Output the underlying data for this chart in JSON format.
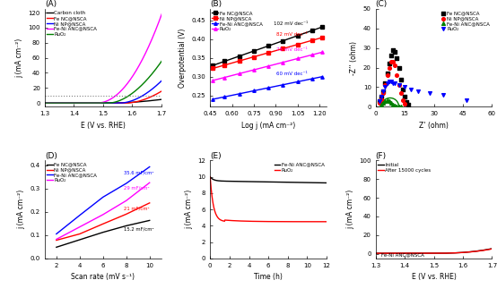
{
  "panel_A": {
    "title": "(A)",
    "xlabel": "E (V vs. RHE)",
    "ylabel": "j (mA cm⁻²)",
    "xlim": [
      1.3,
      1.7
    ],
    "ylim": [
      -5,
      125
    ],
    "yticks": [
      0,
      20,
      40,
      60,
      80,
      100,
      120
    ],
    "xticks": [
      1.3,
      1.4,
      1.5,
      1.6,
      1.7
    ],
    "dotted_y": 10
  },
  "panel_B": {
    "title": "(B)",
    "xlabel": "Log j (mA cm⁻²)",
    "ylabel": "Overpotential (V)",
    "xlim": [
      0.45,
      1.25
    ],
    "ylim": [
      0.22,
      0.48
    ],
    "yticks": [
      0.25,
      0.3,
      0.35,
      0.4,
      0.45
    ],
    "xticks": [
      0.45,
      0.6,
      0.75,
      0.9,
      1.05,
      1.2
    ]
  },
  "panel_C": {
    "title": "(C)",
    "xlabel": "Z’ (ohm)",
    "ylabel": "-Z’’ (ohm)",
    "xlim": [
      0,
      60
    ],
    "ylim": [
      0,
      50
    ],
    "yticks": [
      0,
      10,
      20,
      30,
      40,
      50
    ],
    "xticks": [
      0,
      15,
      30,
      45,
      60
    ]
  },
  "panel_D": {
    "title": "(D)",
    "xlabel": "Scan rate (mV s⁻¹)",
    "ylabel": "j (mA cm⁻²)",
    "xlim": [
      1,
      11
    ],
    "ylim": [
      0,
      0.42
    ],
    "xticks": [
      2,
      4,
      6,
      8,
      10
    ],
    "yticks": [
      0.0,
      0.1,
      0.2,
      0.3,
      0.4
    ]
  },
  "panel_E": {
    "title": "(E)",
    "xlabel": "Time (h)",
    "ylabel": "j (mA cm⁻²)",
    "xlim": [
      0,
      12
    ],
    "ylim": [
      0,
      12
    ],
    "yticks": [
      0,
      2,
      4,
      6,
      8,
      10,
      12
    ],
    "xticks": [
      0,
      2,
      4,
      6,
      8,
      10,
      12
    ]
  },
  "panel_F": {
    "title": "(F)",
    "xlabel": "E (V vs. RHE)",
    "ylabel": "j (mA cm⁻²)",
    "xlim": [
      1.3,
      1.7
    ],
    "ylim": [
      -5,
      100
    ],
    "yticks": [
      0,
      20,
      40,
      60,
      80,
      100
    ],
    "xticks": [
      1.3,
      1.4,
      1.5,
      1.6,
      1.7
    ],
    "annotation": "Fe-Ni ANC@NSCA"
  }
}
